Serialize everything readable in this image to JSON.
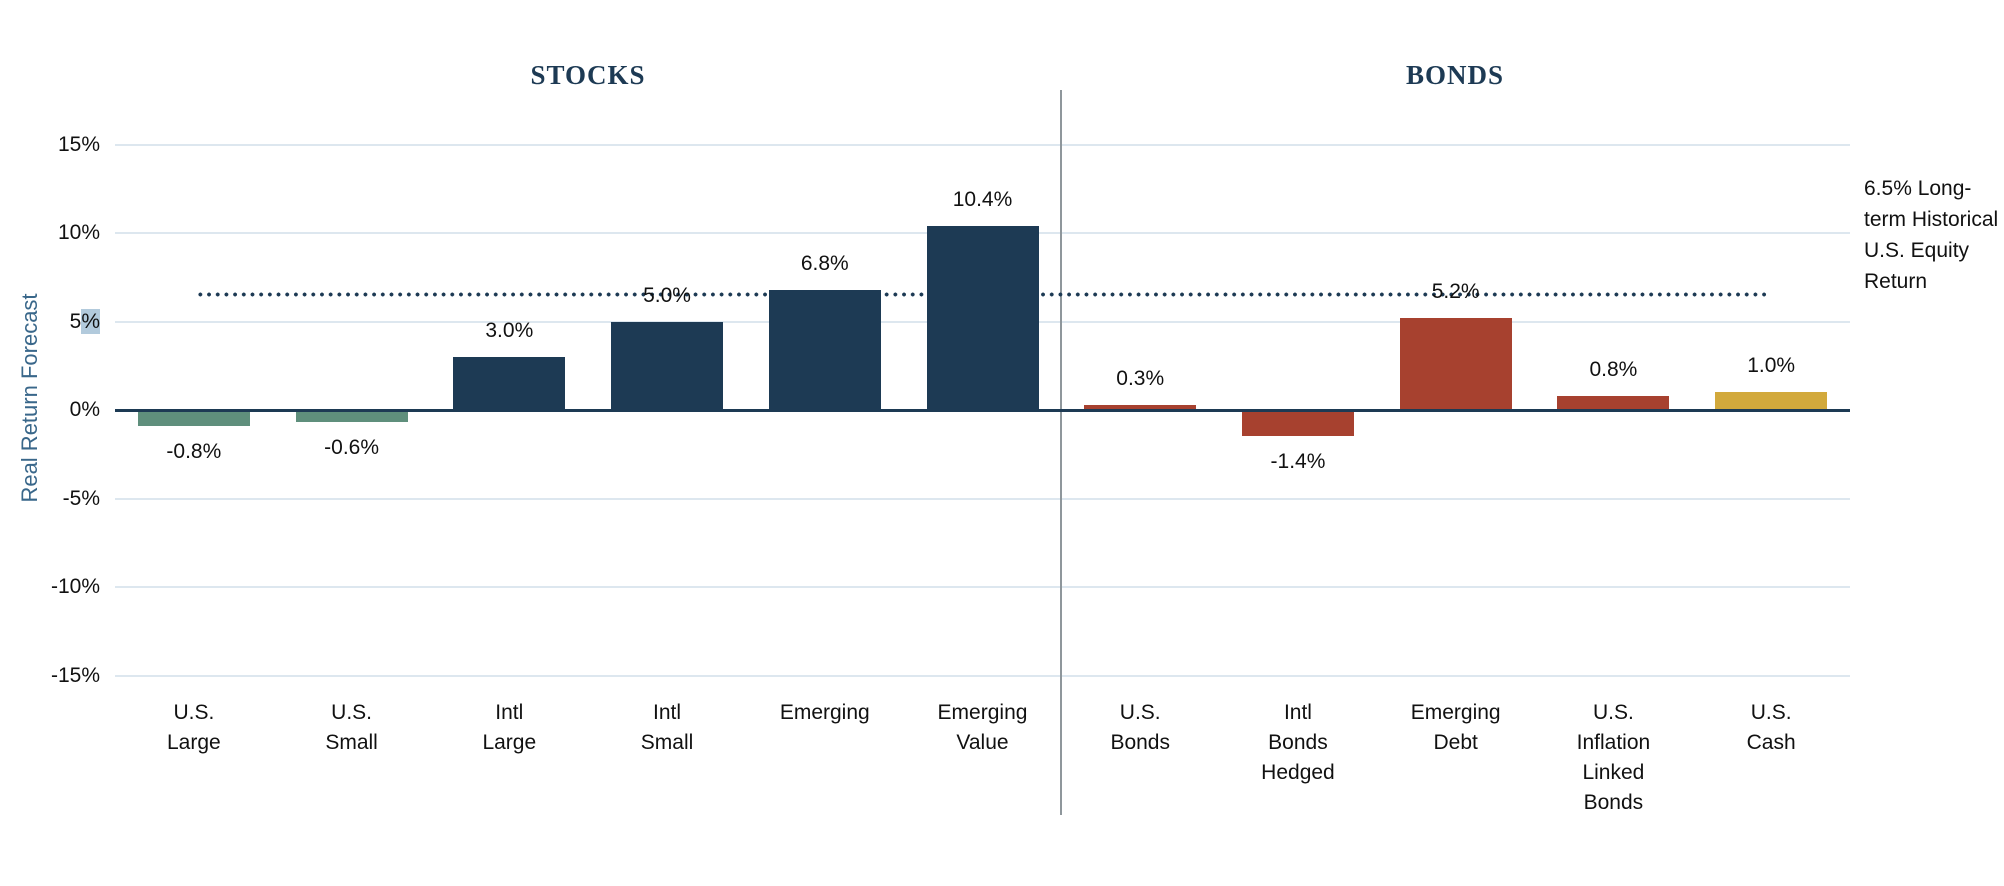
{
  "figure": {
    "description_visible_text_only": true
  },
  "sections_header": {
    "stocks_title": "STOCKS",
    "bonds_title": "BONDS"
  },
  "colors": {
    "navy": "#1d3a54",
    "green": "#5f8f7c",
    "red": "#a7412f",
    "gold": "#d2a93c",
    "gridline": "#dde7ef",
    "divider_gray": "#8f979c",
    "axis_label_blue": "#39678a",
    "text_black": "#111111",
    "tick_selection_highlight": "#b2cadc"
  },
  "chart_data": {
    "type": "bar",
    "title": "",
    "xlabel": "",
    "ylabel": "Real Return Forecast",
    "ylim": [
      -15,
      15
    ],
    "grid": true,
    "legend": "none",
    "yticks": {
      "values": [
        15,
        10,
        5,
        0,
        -5,
        -10,
        -15
      ],
      "labels": [
        "15%",
        "10%",
        "5%",
        "0%",
        "-5%",
        "-10%",
        "-15%"
      ],
      "selection_highlight": {
        "tick_index": 2,
        "substring": "%"
      }
    },
    "sections": [
      {
        "title": "STOCKS",
        "categories": [
          "U.S.\nLarge",
          "U.S.\nSmall",
          "Intl\nLarge",
          "Intl\nSmall",
          "Emerging",
          "Emerging\nValue"
        ],
        "values": [
          -0.8,
          -0.6,
          3.0,
          5.0,
          6.8,
          10.4
        ],
        "value_labels": [
          "-0.8%",
          "-0.6%",
          "3.0%",
          "5.0%",
          "6.8%",
          "10.4%"
        ],
        "bar_colors": [
          "#5f8f7c",
          "#5f8f7c",
          "#1d3a54",
          "#1d3a54",
          "#1d3a54",
          "#1d3a54"
        ]
      },
      {
        "title": "BONDS",
        "categories": [
          "U.S.\nBonds",
          "Intl\nBonds\nHedged",
          "Emerging\nDebt",
          "U.S.\nInflation\nLinked\nBonds",
          "U.S.\nCash"
        ],
        "values": [
          0.3,
          -1.4,
          5.2,
          0.8,
          1.0
        ],
        "value_labels": [
          "0.3%",
          "-1.4%",
          "5.2%",
          "0.8%",
          "1.0%"
        ],
        "bar_colors": [
          "#a7412f",
          "#a7412f",
          "#a7412f",
          "#a7412f",
          "#d2a93c"
        ]
      }
    ],
    "reference_line": {
      "value": 6.5,
      "style": "dotted",
      "color": "#1d3a54",
      "label": "6.5% Long-term Historical U.S. Equity Return"
    }
  }
}
